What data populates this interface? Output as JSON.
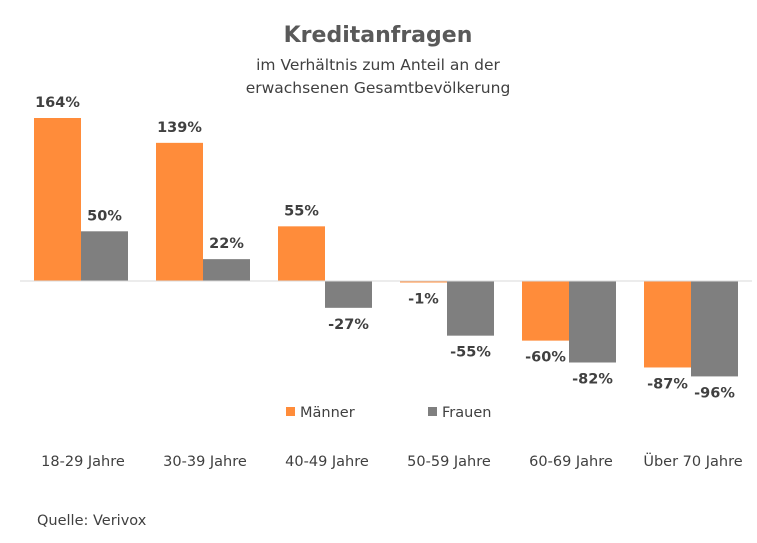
{
  "chart_data": {
    "type": "bar",
    "title": "Kreditanfragen",
    "subtitle": [
      "im Verhältnis zum Anteil an der",
      "erwachsenen Gesamtbevölkerung"
    ],
    "categories": [
      "18-29 Jahre",
      "30-39 Jahre",
      "40-49 Jahre",
      "50-59 Jahre",
      "60-69 Jahre",
      "Über 70 Jahre"
    ],
    "series": [
      {
        "name": "Männer",
        "color": "#FF8C3A",
        "values": [
          164,
          139,
          55,
          -1,
          -60,
          -87
        ],
        "labels": [
          "164%",
          "139%",
          "55%",
          "-1%",
          "-60%",
          "-87%"
        ]
      },
      {
        "name": "Frauen",
        "color": "#7F7F7F",
        "values": [
          50,
          22,
          -27,
          -55,
          -82,
          -96
        ],
        "labels": [
          "50%",
          "22%",
          "-27%",
          "-55%",
          "-82%",
          "-96%"
        ]
      }
    ],
    "unit": "%",
    "ylim": [
      -110,
      180
    ],
    "legend_position": "bottom",
    "grid": false
  },
  "source": "Quelle: Verivox"
}
